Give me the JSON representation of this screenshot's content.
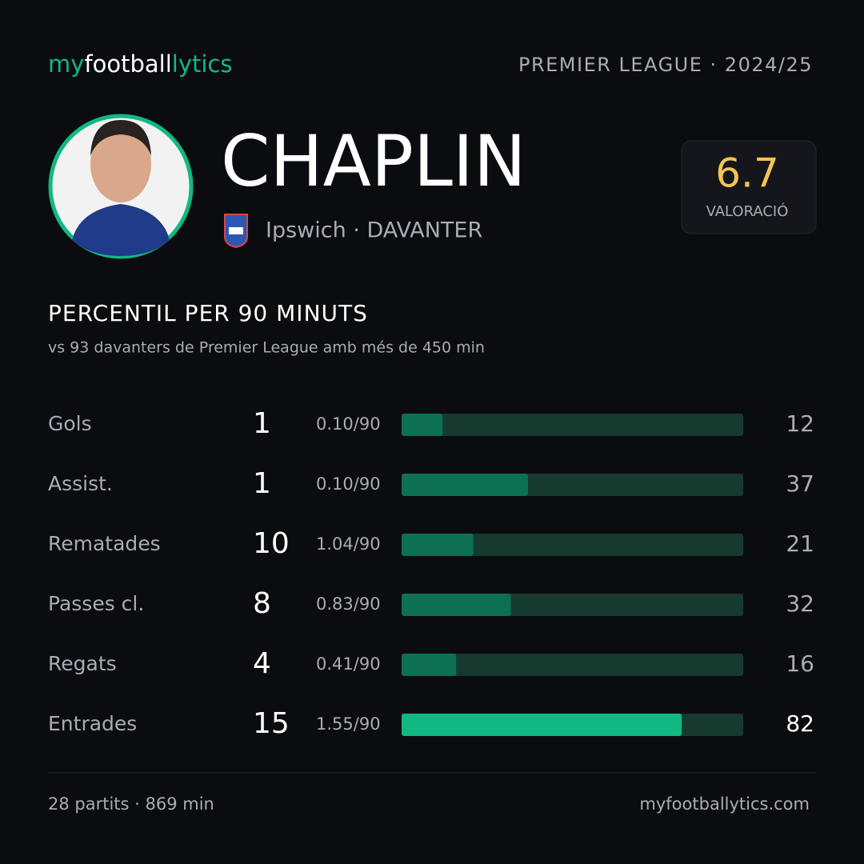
{
  "header": {
    "brand": [
      "my",
      "football",
      "lytics"
    ],
    "league": "PREMIER LEAGUE · 2024/25"
  },
  "player": {
    "name": "CHAPLIN",
    "team": "Ipswich · DAVANTER",
    "rating": 6.7,
    "rating_label": "VALORACIÓ"
  },
  "section": {
    "title": "PERCENTIL PER 90 MINUTS",
    "subtitle": "vs 93 davanters de Premier League amb més de 450 min"
  },
  "chart_data": {
    "type": "bar",
    "categories": [
      "Gols",
      "Assist.",
      "Rematades",
      "Passes cl.",
      "Regats",
      "Entrades"
    ],
    "totals": [
      1,
      1,
      10,
      8,
      4,
      15
    ],
    "per90": [
      "0.10/90",
      "0.10/90",
      "1.04/90",
      "0.83/90",
      "0.41/90",
      "1.55/90"
    ],
    "values": [
      12,
      37,
      21,
      32,
      16,
      82
    ],
    "xlim": [
      0,
      100
    ],
    "colors": [
      "#0d7052",
      "#0d7052",
      "#0d7052",
      "#0d7052",
      "#0d7052",
      "#10b981"
    ],
    "track_color": "#173a2e"
  },
  "footer": {
    "stats": "28 partits · 869 min",
    "site": "myfootballytics.com"
  }
}
